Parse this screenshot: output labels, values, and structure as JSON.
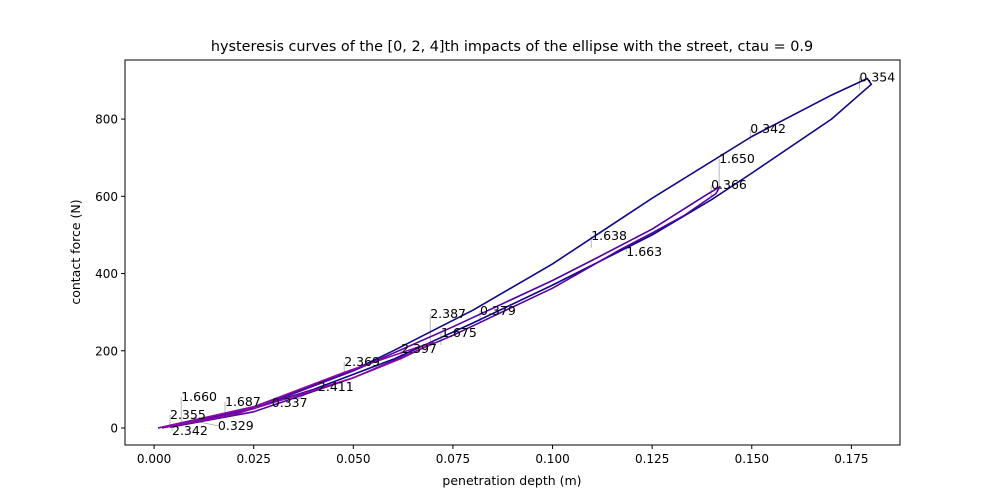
{
  "chart_data": {
    "type": "line",
    "title": "hysteresis curves of the [0, 2, 4]th impacts of the ellipse with the street, ctau = 0.9",
    "xlabel": "penetration depth (m)",
    "ylabel": "contact force (N)",
    "xlim": [
      -0.0073,
      0.1872
    ],
    "ylim": [
      -44,
      953
    ],
    "xticks": [
      "0.000",
      "0.025",
      "0.050",
      "0.075",
      "0.100",
      "0.125",
      "0.150",
      "0.175"
    ],
    "xtick_values": [
      0,
      0.025,
      0.05,
      0.075,
      0.1,
      0.125,
      0.15,
      0.175
    ],
    "yticks": [
      "0",
      "200",
      "400",
      "600",
      "800"
    ],
    "ytick_values": [
      0,
      200,
      400,
      600,
      800
    ],
    "grid": false,
    "series": [
      {
        "color": "#0d0887",
        "x": [
          0.001,
          0.025,
          0.05,
          0.06,
          0.08,
          0.1,
          0.125,
          0.15,
          0.17,
          0.179,
          0.18,
          0.17,
          0.15,
          0.14,
          0.125,
          0.1,
          0.08,
          0.06,
          0.04,
          0.02,
          0.003
        ],
        "y": [
          0,
          55,
          150,
          200,
          305,
          425,
          595,
          755,
          862,
          905,
          890,
          800,
          660,
          592,
          500,
          370,
          272,
          178,
          100,
          35,
          2
        ]
      },
      {
        "color": "#5302a3",
        "x": [
          0.002,
          0.025,
          0.05,
          0.075,
          0.1,
          0.111,
          0.125,
          0.138,
          0.142,
          0.141,
          0.133,
          0.128,
          0.125,
          0.117,
          0.1,
          0.075,
          0.05,
          0.025,
          0.004
        ],
        "y": [
          0,
          50,
          148,
          262,
          382,
          440,
          515,
          600,
          625,
          607,
          550,
          522,
          505,
          462,
          362,
          240,
          130,
          42,
          2
        ]
      },
      {
        "color": "#8b0aa5",
        "x": [
          0.001,
          0.025,
          0.048,
          0.065,
          0.07,
          0.069,
          0.062,
          0.05,
          0.036,
          0.02,
          0.003
        ],
        "y": [
          0,
          55,
          145,
          205,
          222,
          215,
          180,
          130,
          85,
          35,
          2
        ]
      }
    ],
    "annotations": [
      {
        "text": "2.355",
        "x": 0.004,
        "y": 3
      },
      {
        "text": "2.342",
        "x": 0.0045,
        "y": 3
      },
      {
        "text": "1.660",
        "x": 0.0068,
        "y": 8
      },
      {
        "text": "0.329",
        "x": 0.011,
        "y": 16
      },
      {
        "text": "1.687",
        "x": 0.0178,
        "y": 36
      },
      {
        "text": "0.337",
        "x": 0.0195,
        "y": 34
      },
      {
        "text": "0.342",
        "x": 0.1496,
        "y": 743
      },
      {
        "text": "0.354",
        "x": 0.177,
        "y": 877
      },
      {
        "text": "0.366",
        "x": 0.1398,
        "y": 598
      },
      {
        "text": "0.379",
        "x": 0.0818,
        "y": 272
      },
      {
        "text": "1.638",
        "x": 0.1097,
        "y": 466
      },
      {
        "text": "1.650",
        "x": 0.1418,
        "y": 624
      },
      {
        "text": "1.663",
        "x": 0.1185,
        "y": 466
      },
      {
        "text": "1.675",
        "x": 0.072,
        "y": 215
      },
      {
        "text": "2.369",
        "x": 0.0477,
        "y": 140
      },
      {
        "text": "2.387",
        "x": 0.0693,
        "y": 223
      },
      {
        "text": "2.397",
        "x": 0.062,
        "y": 173
      },
      {
        "text": "2.411",
        "x": 0.0361,
        "y": 75
      }
    ]
  }
}
